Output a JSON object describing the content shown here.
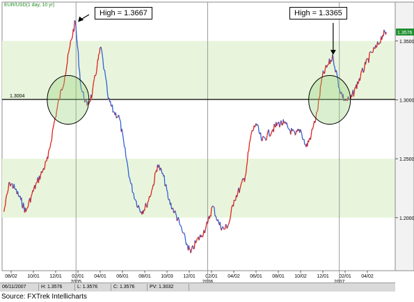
{
  "chart_data": {
    "type": "line",
    "legend_label": "EUR/USD(1 day, 10 yr)",
    "ylim": [
      1.155,
      1.383
    ],
    "y_ticks": [
      {
        "value": 1.35,
        "label": "1.3500"
      },
      {
        "value": 1.3,
        "label": "1.3000"
      },
      {
        "value": 1.25,
        "label": "1.2500"
      },
      {
        "value": 1.2,
        "label": "1.2000"
      }
    ],
    "current_price_label": "1.3576",
    "current_price": 1.3576,
    "horizontal_line": {
      "value": 1.3004,
      "label": "1.3004"
    },
    "x_ticks": [
      "08/02",
      "10/01",
      "12/01",
      "02/01",
      "04/01",
      "06/01",
      "08/01",
      "10/03",
      "12/01",
      "02/01",
      "04/02",
      "06/01",
      "08/01",
      "10/02",
      "12/01",
      "02/01",
      "04/02"
    ],
    "year_labels": [
      "2005",
      "2006",
      "2007"
    ],
    "bands": [
      {
        "from": 1.3,
        "to": 1.35
      },
      {
        "from": 1.2,
        "to": 1.25
      }
    ],
    "series": [
      {
        "x": [
          "2004-06-15",
          "2004-07-01",
          "2004-07-15",
          "2004-08-01",
          "2004-08-15",
          "2004-09-01",
          "2004-09-15",
          "2004-10-01",
          "2004-10-15",
          "2004-11-01",
          "2004-11-15",
          "2004-12-01",
          "2004-12-15",
          "2004-12-30",
          "2005-01-15",
          "2005-02-01",
          "2005-02-15",
          "2005-03-01",
          "2005-03-11",
          "2005-04-01",
          "2005-04-15",
          "2005-05-01",
          "2005-05-15",
          "2005-06-01",
          "2005-06-15",
          "2005-07-01",
          "2005-07-15",
          "2005-08-01",
          "2005-08-15",
          "2005-09-01",
          "2005-09-15",
          "2005-10-01",
          "2005-10-15",
          "2005-11-01",
          "2005-11-15",
          "2005-12-01",
          "2005-12-15",
          "2006-01-01",
          "2006-01-15",
          "2006-02-01",
          "2006-02-15",
          "2006-03-01",
          "2006-03-15",
          "2006-04-01",
          "2006-04-15",
          "2006-05-01",
          "2006-05-15",
          "2006-06-01",
          "2006-06-15",
          "2006-07-01",
          "2006-07-15",
          "2006-08-01",
          "2006-08-15",
          "2006-09-01",
          "2006-09-15",
          "2006-10-01",
          "2006-10-15",
          "2006-11-01",
          "2006-11-15",
          "2006-12-01",
          "2006-12-15",
          "2007-01-01",
          "2007-01-15",
          "2007-02-01",
          "2007-02-15",
          "2007-03-01",
          "2007-03-15",
          "2007-04-01",
          "2007-04-15",
          "2007-05-01",
          "2007-05-11"
        ],
        "y": [
          1.205,
          1.23,
          1.225,
          1.215,
          1.205,
          1.22,
          1.23,
          1.24,
          1.25,
          1.28,
          1.3,
          1.32,
          1.345,
          1.3667,
          1.31,
          1.295,
          1.305,
          1.33,
          1.345,
          1.3,
          1.29,
          1.285,
          1.26,
          1.23,
          1.215,
          1.205,
          1.21,
          1.225,
          1.245,
          1.235,
          1.215,
          1.205,
          1.195,
          1.18,
          1.17,
          1.18,
          1.185,
          1.195,
          1.21,
          1.195,
          1.19,
          1.195,
          1.215,
          1.225,
          1.235,
          1.27,
          1.28,
          1.265,
          1.27,
          1.275,
          1.28,
          1.28,
          1.275,
          1.27,
          1.275,
          1.26,
          1.27,
          1.29,
          1.32,
          1.33,
          1.3365,
          1.31,
          1.3,
          1.3,
          1.31,
          1.32,
          1.33,
          1.34,
          1.345,
          1.355,
          1.3576
        ]
      }
    ],
    "annotations": [
      {
        "text": "High = 1.3667",
        "x": "2004-12-30",
        "y": 1.3667
      },
      {
        "text": "High = 1.3365",
        "x": "2006-12-15",
        "y": 1.3365
      }
    ],
    "circles": [
      {
        "x": "2004-12-10",
        "y": 1.3
      },
      {
        "x": "2006-12-05",
        "y": 1.3
      }
    ]
  },
  "status": {
    "date": "06/11/2007",
    "high": "H: 1.3576",
    "low": "L: 1.3576",
    "close": "C: 1.3576",
    "pv": "PV: 1.3032"
  },
  "source": "Source: FXTrek Intellicharts",
  "colors": {
    "up": "#e0201a",
    "down": "#2f5fd6",
    "band": "#e8f5dc",
    "legend": "#1f8a1f"
  }
}
